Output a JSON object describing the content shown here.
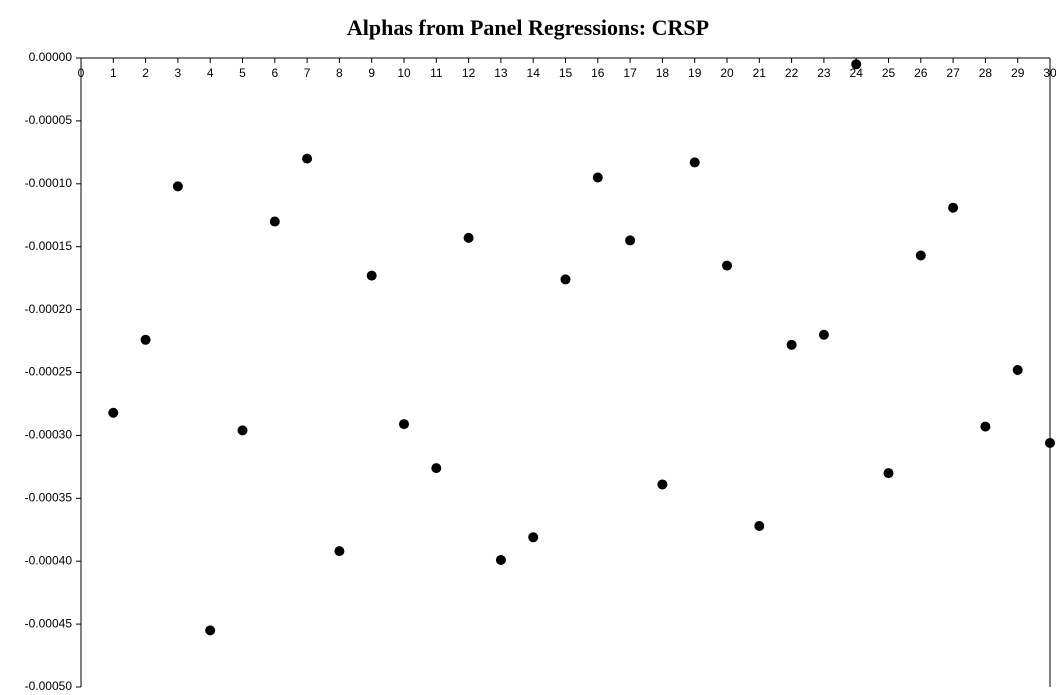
{
  "chart_data": {
    "type": "scatter",
    "title": "Alphas from Panel Regressions: CRSP",
    "color": "#000000",
    "x": [
      1,
      2,
      3,
      4,
      5,
      6,
      7,
      8,
      9,
      10,
      11,
      12,
      13,
      14,
      15,
      16,
      17,
      18,
      19,
      20,
      21,
      22,
      23,
      24,
      25,
      26,
      27,
      28,
      29,
      30
    ],
    "values": [
      -0.000282,
      -0.000224,
      -0.000102,
      -0.000455,
      -0.000296,
      -0.00013,
      -8e-05,
      -0.000392,
      -0.000173,
      -0.000291,
      -0.000326,
      -0.000143,
      -0.000399,
      -0.000381,
      -0.000176,
      -9.5e-05,
      -0.000145,
      -0.000339,
      -8.3e-05,
      -0.000165,
      -0.000372,
      -0.000228,
      -0.00022,
      -5e-06,
      -0.00033,
      -0.000157,
      -0.000119,
      -0.000293,
      -0.000248,
      -0.000306
    ],
    "xlim": [
      0,
      30
    ],
    "xticks": [
      0,
      1,
      2,
      3,
      4,
      5,
      6,
      7,
      8,
      9,
      10,
      11,
      12,
      13,
      14,
      15,
      16,
      17,
      18,
      19,
      20,
      21,
      22,
      23,
      24,
      25,
      26,
      27,
      28,
      29,
      30
    ],
    "ylim": [
      -0.0005,
      0
    ],
    "yticks": [
      {
        "value": 0,
        "label": "0.00000"
      },
      {
        "value": -5e-05,
        "label": "-0.00005"
      },
      {
        "value": -0.0001,
        "label": "-0.00010"
      },
      {
        "value": -0.00015,
        "label": "-0.00015"
      },
      {
        "value": -0.0002,
        "label": "-0.00020"
      },
      {
        "value": -0.00025,
        "label": "-0.00025"
      },
      {
        "value": -0.0003,
        "label": "-0.00030"
      },
      {
        "value": -0.00035,
        "label": "-0.00035"
      },
      {
        "value": -0.0004,
        "label": "-0.00040"
      },
      {
        "value": -0.00045,
        "label": "-0.00045"
      },
      {
        "value": -0.0005,
        "label": "-0.00050"
      }
    ]
  }
}
